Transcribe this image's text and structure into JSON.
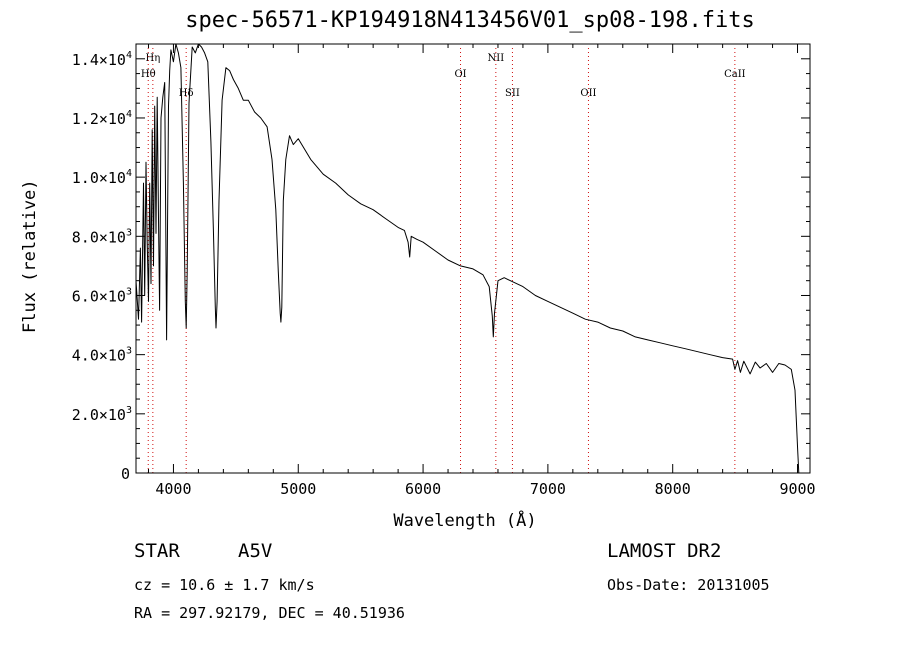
{
  "header": {
    "title": "spec-56571-KP194918N413456V01_sp08-198.fits"
  },
  "footer": {
    "object_type": "STAR",
    "subclass": "A5V",
    "redshift_text": "cz = 10.6 ± 1.7 km/s",
    "coordinates_text": "RA = 297.92179, DEC =  40.51936",
    "survey": "LAMOST DR2",
    "obs_date_text": "Obs-Date: 20131005"
  },
  "chart_data": {
    "type": "line",
    "title": "spec-56571-KP194918N413456V01_sp08-198.fits",
    "xlabel": "Wavelength (Å)",
    "ylabel": "Flux (relative)",
    "xlim": [
      3700,
      9100
    ],
    "ylim": [
      0,
      14500
    ],
    "grid": false,
    "x_ticks": [
      {
        "value": 4000,
        "label": "4000"
      },
      {
        "value": 5000,
        "label": "5000"
      },
      {
        "value": 6000,
        "label": "6000"
      },
      {
        "value": 7000,
        "label": "7000"
      },
      {
        "value": 8000,
        "label": "8000"
      },
      {
        "value": 9000,
        "label": "9000"
      }
    ],
    "y_ticks": [
      {
        "value": 0,
        "mant": "0",
        "exp": ""
      },
      {
        "value": 2000,
        "mant": "2.0×10",
        "exp": "3"
      },
      {
        "value": 4000,
        "mant": "4.0×10",
        "exp": "3"
      },
      {
        "value": 6000,
        "mant": "6.0×10",
        "exp": "3"
      },
      {
        "value": 8000,
        "mant": "8.0×10",
        "exp": "3"
      },
      {
        "value": 10000,
        "mant": "1.0×10",
        "exp": "4"
      },
      {
        "value": 12000,
        "mant": "1.2×10",
        "exp": "4"
      },
      {
        "value": 14000,
        "mant": "1.4×10",
        "exp": "4"
      }
    ],
    "line_markers": [
      {
        "name": "Hη",
        "wavelength": 3835,
        "label_level": 1
      },
      {
        "name": "Hθ",
        "wavelength": 3798,
        "label_level": 2
      },
      {
        "name": "Hδ",
        "wavelength": 4102,
        "label_level": 3
      },
      {
        "name": "OI",
        "wavelength": 6300,
        "label_level": 2
      },
      {
        "name": "NII",
        "wavelength": 6583,
        "label_level": 1
      },
      {
        "name": "SII",
        "wavelength": 6716,
        "label_level": 3
      },
      {
        "name": "OII",
        "wavelength": 7325,
        "label_level": 3
      },
      {
        "name": "CaII",
        "wavelength": 8498,
        "label_level": 2
      }
    ],
    "series": [
      {
        "x": [
          3700,
          3720,
          3735,
          3745,
          3760,
          3770,
          3780,
          3790,
          3800,
          3810,
          3820,
          3830,
          3840,
          3850,
          3860,
          3870,
          3880,
          3889,
          3900,
          3915,
          3930,
          3945,
          3960,
          3970,
          3980,
          4000,
          4020,
          4040,
          4060,
          4080,
          4095,
          4102,
          4110,
          4125,
          4150,
          4175,
          4200,
          4225,
          4250,
          4275,
          4300,
          4320,
          4335,
          4341,
          4350,
          4365,
          4390,
          4420,
          4450,
          4480,
          4520,
          4560,
          4600,
          4650,
          4700,
          4750,
          4790,
          4820,
          4840,
          4855,
          4861,
          4868,
          4880,
          4900,
          4930,
          4960,
          5000,
          5100,
          5200,
          5300,
          5400,
          5500,
          5600,
          5700,
          5800,
          5850,
          5880,
          5893,
          5905,
          5950,
          6000,
          6100,
          6200,
          6300,
          6400,
          6480,
          6530,
          6555,
          6563,
          6572,
          6600,
          6650,
          6700,
          6800,
          6900,
          7000,
          7100,
          7200,
          7300,
          7400,
          7500,
          7600,
          7700,
          7800,
          7900,
          8000,
          8100,
          8200,
          8300,
          8400,
          8480,
          8498,
          8520,
          8542,
          8570,
          8620,
          8662,
          8700,
          8750,
          8800,
          8850,
          8900,
          8950,
          8980,
          9000,
          9010
        ],
        "y": [
          6500,
          5200,
          7600,
          5100,
          9800,
          6000,
          10500,
          7800,
          5800,
          9800,
          6400,
          11600,
          7000,
          12400,
          8100,
          12700,
          8600,
          5500,
          12000,
          12700,
          13200,
          4500,
          12400,
          13600,
          14300,
          13900,
          14500,
          14200,
          13700,
          9800,
          5800,
          4900,
          6800,
          12500,
          14400,
          14200,
          14800,
          14400,
          14200,
          13900,
          11200,
          8200,
          5600,
          4900,
          5800,
          9200,
          12600,
          13700,
          13600,
          13300,
          13000,
          12600,
          12600,
          12200,
          12000,
          11700,
          10600,
          8900,
          6800,
          5400,
          5100,
          5600,
          9200,
          10600,
          11400,
          11100,
          11300,
          10600,
          10100,
          9800,
          9400,
          9100,
          8900,
          8600,
          8300,
          8200,
          7800,
          7300,
          8000,
          7900,
          7800,
          7500,
          7200,
          7000,
          6900,
          6700,
          6300,
          5300,
          4600,
          5400,
          6500,
          6600,
          6500,
          6300,
          6000,
          5800,
          5600,
          5400,
          5200,
          5100,
          4900,
          4800,
          4600,
          4500,
          4400,
          4300,
          4200,
          4100,
          4000,
          3900,
          3850,
          3500,
          3800,
          3400,
          3780,
          3350,
          3750,
          3550,
          3700,
          3400,
          3700,
          3650,
          3500,
          2800,
          900,
          0
        ]
      }
    ]
  }
}
